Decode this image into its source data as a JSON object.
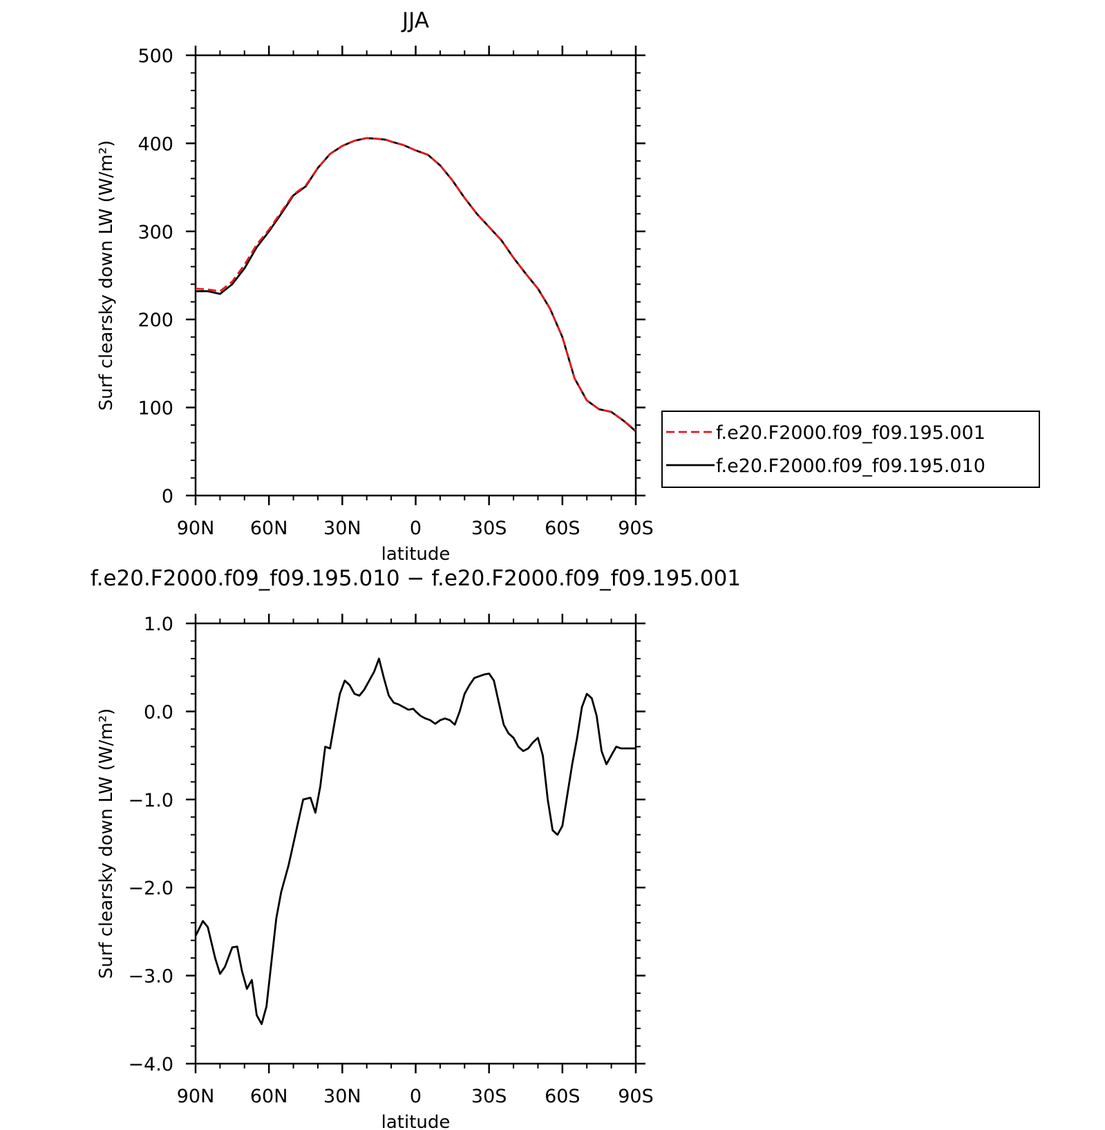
{
  "chart_data": [
    {
      "type": "line",
      "title": "JJA",
      "xlabel": "latitude",
      "ylabel": "Surf clearsky down LW (W/m²)",
      "ylim": [
        0,
        500
      ],
      "xlim": [
        90,
        -90
      ],
      "yticks": [
        "0",
        "100",
        "200",
        "300",
        "400",
        "500"
      ],
      "xticks": [
        "90N",
        "60N",
        "30N",
        "0",
        "30S",
        "60S",
        "90S"
      ],
      "xtick_values": [
        90,
        60,
        30,
        0,
        -30,
        -60,
        -90
      ],
      "ytick_values": [
        0,
        100,
        200,
        300,
        400,
        500
      ],
      "x": [
        90,
        85,
        80,
        75,
        70,
        65,
        60,
        55,
        50,
        45,
        40,
        35,
        30,
        25,
        20,
        15,
        12,
        10,
        5,
        0,
        -5,
        -10,
        -15,
        -20,
        -25,
        -30,
        -35,
        -40,
        -45,
        -50,
        -55,
        -60,
        -65,
        -70,
        -75,
        -80,
        -85,
        -90
      ],
      "series": [
        {
          "name": "f.e20.F2000.f09_f09.195.001",
          "color": "#e31a1c",
          "style": "dashed",
          "values": [
            235,
            234,
            232,
            243,
            262,
            285,
            302,
            322,
            342,
            352,
            372,
            388,
            397,
            403,
            406,
            405,
            404,
            402,
            398,
            392,
            387,
            375,
            358,
            338,
            320,
            305,
            290,
            270,
            252,
            235,
            212,
            180,
            133,
            108,
            98,
            95,
            85,
            74
          ]
        },
        {
          "name": "f.e20.F2000.f09_f09.195.010",
          "color": "#000000",
          "style": "solid",
          "values": [
            232,
            232,
            229,
            240,
            258,
            282,
            300,
            320,
            341,
            351,
            372,
            388,
            397,
            403,
            406,
            405,
            404,
            402,
            398,
            392,
            387,
            375,
            358,
            338,
            320,
            305,
            290,
            270,
            252,
            235,
            212,
            180,
            133,
            108,
            98,
            95,
            85,
            73
          ]
        }
      ],
      "legend": "right"
    },
    {
      "type": "line",
      "title": "f.e20.F2000.f09_f09.195.010 − f.e20.F2000.f09_f09.195.001",
      "xlabel": "latitude",
      "ylabel": "Surf clearsky down LW (W/m²)",
      "ylim": [
        -4.0,
        1.0
      ],
      "xlim": [
        90,
        -90
      ],
      "yticks": [
        "−4.0",
        "−3.0",
        "−2.0",
        "−1.0",
        "0.0",
        "1.0"
      ],
      "ytick_values": [
        -4,
        -3,
        -2,
        -1,
        0,
        1
      ],
      "xticks": [
        "90N",
        "60N",
        "30N",
        "0",
        "30S",
        "60S",
        "90S"
      ],
      "xtick_values": [
        90,
        60,
        30,
        0,
        -30,
        -60,
        -90
      ],
      "x": [
        90,
        87,
        85,
        82,
        80,
        78,
        75,
        73,
        71,
        69,
        67,
        65,
        63,
        61,
        59,
        57,
        55,
        52,
        50,
        48,
        46,
        43,
        41,
        39,
        37,
        35,
        33,
        31,
        29,
        27,
        25,
        23,
        21,
        19,
        17,
        15,
        13,
        11,
        9,
        7,
        5,
        3,
        1,
        0,
        -2,
        -4,
        -6,
        -8,
        -10,
        -12,
        -14,
        -16,
        -18,
        -20,
        -22,
        -24,
        -26,
        -28,
        -30,
        -32,
        -34,
        -36,
        -38,
        -40,
        -42,
        -44,
        -46,
        -48,
        -50,
        -52,
        -54,
        -56,
        -58,
        -60,
        -62,
        -64,
        -66,
        -68,
        -70,
        -72,
        -74,
        -76,
        -78,
        -80,
        -82,
        -84,
        -86,
        -88,
        -90
      ],
      "series": [
        {
          "name": "",
          "color": "#000000",
          "style": "solid",
          "values": [
            -2.55,
            -2.38,
            -2.45,
            -2.8,
            -2.98,
            -2.9,
            -2.68,
            -2.67,
            -2.95,
            -3.15,
            -3.05,
            -3.45,
            -3.55,
            -3.35,
            -2.85,
            -2.35,
            -2.05,
            -1.75,
            -1.5,
            -1.25,
            -1.0,
            -0.98,
            -1.15,
            -0.85,
            -0.4,
            -0.42,
            -0.1,
            0.2,
            0.35,
            0.3,
            0.2,
            0.18,
            0.25,
            0.35,
            0.45,
            0.6,
            0.38,
            0.18,
            0.1,
            0.08,
            0.05,
            0.02,
            0.03,
            0.0,
            -0.05,
            -0.08,
            -0.1,
            -0.14,
            -0.1,
            -0.08,
            -0.1,
            -0.15,
            0.0,
            0.2,
            0.3,
            0.38,
            0.4,
            0.42,
            0.43,
            0.35,
            0.1,
            -0.15,
            -0.25,
            -0.3,
            -0.4,
            -0.45,
            -0.42,
            -0.35,
            -0.3,
            -0.5,
            -1.0,
            -1.35,
            -1.4,
            -1.3,
            -0.95,
            -0.6,
            -0.3,
            0.05,
            0.2,
            0.15,
            -0.05,
            -0.45,
            -0.6,
            -0.5,
            -0.4,
            -0.42,
            -0.42,
            -0.42,
            -0.42
          ]
        }
      ]
    }
  ]
}
